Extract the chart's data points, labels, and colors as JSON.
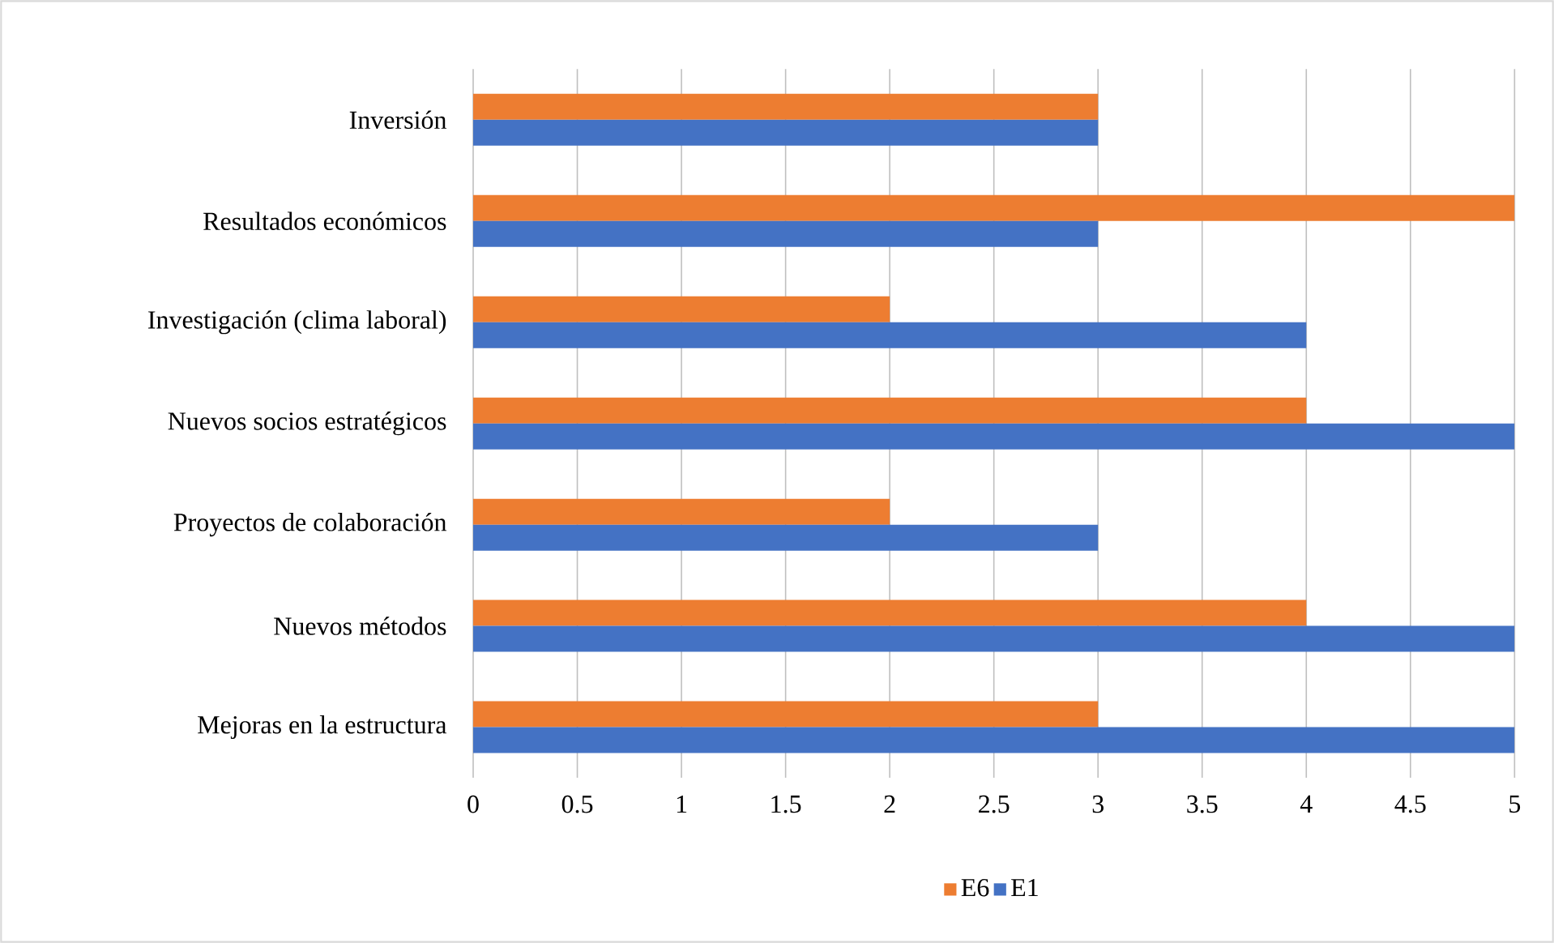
{
  "chart_data": {
    "type": "bar",
    "orientation": "horizontal",
    "categories": [
      "Inversión",
      "Resultados económicos",
      "Investigación (clima laboral)",
      "Nuevos socios estratégicos",
      "Proyectos de colaboración",
      "Nuevos métodos",
      "Mejoras en la estructura"
    ],
    "series": [
      {
        "name": "E6",
        "color": "#ed7d31",
        "values": [
          3,
          5,
          2,
          4,
          2,
          4,
          3
        ]
      },
      {
        "name": "E1",
        "color": "#4472c4",
        "values": [
          3,
          3,
          4,
          5,
          3,
          5,
          5
        ]
      }
    ],
    "xlim": [
      0,
      5
    ],
    "xticks": [
      0,
      0.5,
      1,
      1.5,
      2,
      2.5,
      3,
      3.5,
      4,
      4.5,
      5
    ],
    "grid": "x",
    "legend": "bottom"
  }
}
